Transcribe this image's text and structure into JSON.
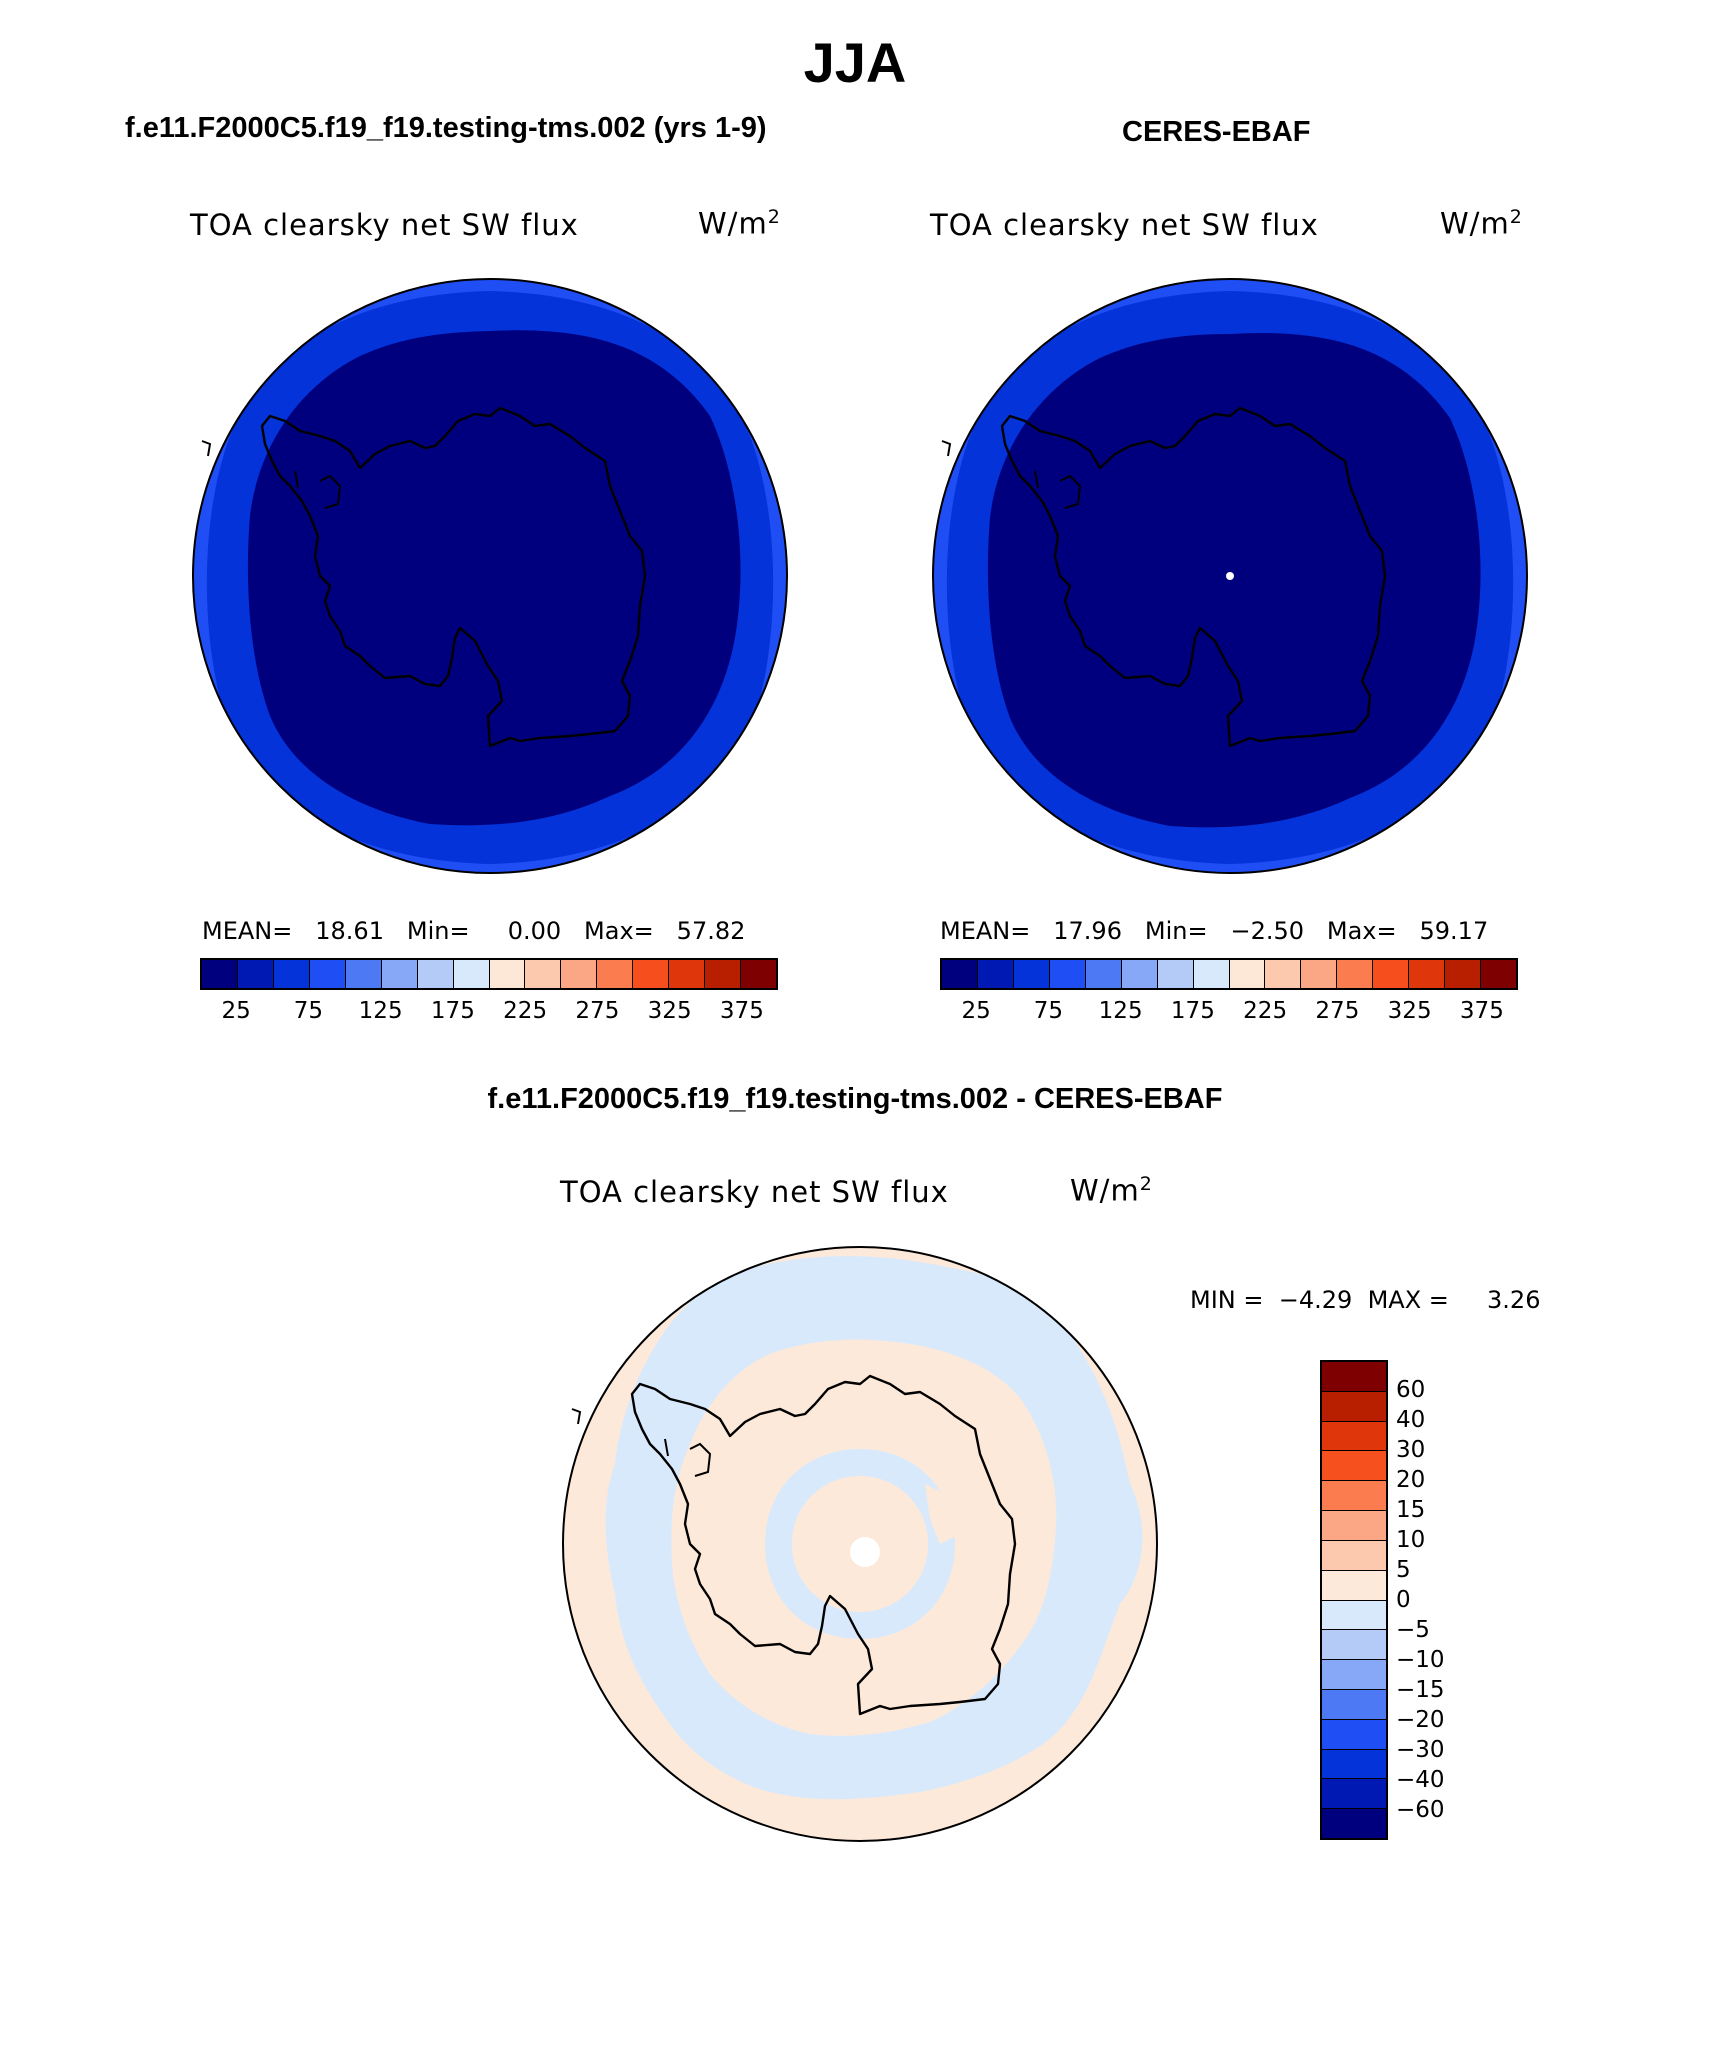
{
  "title": "JJA",
  "panels": {
    "model": {
      "case": "f.e11.F2000C5.f19_f19.testing-tms.002 (yrs 1-9)",
      "variable": "TOA clearsky net SW flux",
      "units_base": "W/m",
      "units_exp": "2",
      "mean_label": "MEAN=",
      "mean": "18.61",
      "min_label": "Min=",
      "min": "0.00",
      "max_label": "Max=",
      "max": "57.82"
    },
    "obs": {
      "case": "CERES-EBAF",
      "variable": "TOA clearsky net SW flux",
      "units_base": "W/m",
      "units_exp": "2",
      "mean_label": "MEAN=",
      "mean": "17.96",
      "min_label": "Min=",
      "min": "−2.50",
      "max_label": "Max=",
      "max": "59.17"
    },
    "diff": {
      "case": "f.e11.F2000C5.f19_f19.testing-tms.002 - CERES-EBAF",
      "variable": "TOA clearsky net SW flux",
      "units_base": "W/m",
      "units_exp": "2",
      "min_label": "MIN =",
      "min": "−4.29",
      "max_label": "MAX =",
      "max": "3.26"
    }
  },
  "colorbar_top": {
    "colors": [
      "#00007f",
      "#0019b3",
      "#0433d9",
      "#1f4ef5",
      "#4d79f5",
      "#86a8f7",
      "#b5cbf7",
      "#d9e9fc",
      "#fde7d6",
      "#fcc9ae",
      "#fba684",
      "#fb7c4e",
      "#f64e1d",
      "#e0360c",
      "#b81e00",
      "#7f0000"
    ],
    "ticks": [
      "25",
      "75",
      "125",
      "175",
      "225",
      "275",
      "325",
      "375"
    ]
  },
  "colorbar_diff": {
    "colors": [
      "#7f0000",
      "#b81e00",
      "#e0360c",
      "#f6501f",
      "#fb7c4e",
      "#fba684",
      "#fcc9ae",
      "#fde9d9",
      "#d9e9fc",
      "#b5cbf7",
      "#86a8f7",
      "#4d79f5",
      "#1f4ef5",
      "#0433d9",
      "#0019b3",
      "#00007f"
    ],
    "ticks": [
      "60",
      "40",
      "30",
      "20",
      "15",
      "10",
      "5",
      "0",
      "−5",
      "−10",
      "−15",
      "−20",
      "−30",
      "−40",
      "−60"
    ]
  },
  "map_colors": {
    "outer_ring": "#1f4ef5",
    "middle_ring": "#0433d9",
    "inner": "#00007f",
    "diff_positive": "#fde9d9",
    "diff_negative": "#d9e9fc",
    "missing": "#ffffff"
  }
}
